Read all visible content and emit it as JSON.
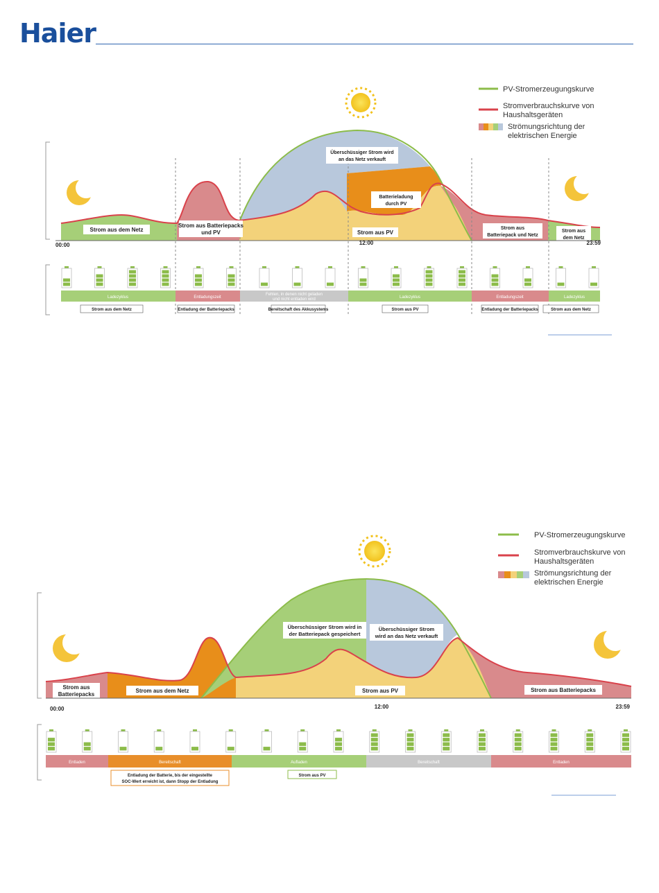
{
  "header": {
    "logo": "Haier"
  },
  "diagram1": {
    "legend": {
      "pv": "PV-Stromerzeugungskurve",
      "consumption_line1": "Stromverbrauchskurve von",
      "consumption_line2": "Haushaltsgeräten",
      "flow_line1": "Strömungsrichtung der",
      "flow_line2": "elektrischen Energie"
    },
    "regions": {
      "grid": "Strom aus dem Netz",
      "battery_pv_1": "Strom aus Batteriepacks",
      "battery_pv_2": "und PV",
      "surplus_1": "Überschüssiger Strom wird",
      "surplus_2": "an das Netz verkauft",
      "charge_1": "Batterieladung",
      "charge_2": "durch PV",
      "pv": "Strom aus PV",
      "battery_grid_1": "Strom aus",
      "battery_grid_2": "Batteriepack und Netz",
      "grid_end_1": "Strom aus",
      "grid_end_2": "dem Netz"
    },
    "axis": {
      "start": "00:00",
      "mid": "12:00",
      "end": "23:59"
    },
    "bars": [
      {
        "label": "Ladezyklus",
        "color": "#a6cf78"
      },
      {
        "label": "Entladungszeit",
        "color": "#d98a8c"
      },
      {
        "label_1": "Fehlen, in denen nicht geladen",
        "label_2": "und nicht entladen wird",
        "color": "#c8c8c8"
      },
      {
        "label": "Ladezyklus",
        "color": "#a6cf78"
      },
      {
        "label": "Entladungszeit",
        "color": "#d98a8c"
      },
      {
        "label": "Ladezyklus",
        "color": "#a6cf78"
      }
    ],
    "notes": [
      "Strom aus dem Netz",
      "Entladung der Batteriepacks",
      "Bereitschaft des Akkusystems",
      "Strom aus PV",
      "Entladung der Batteriepacks",
      "Strom aus dem Netz"
    ],
    "battery_levels": [
      2,
      3,
      4,
      4,
      3,
      3,
      1,
      1,
      1,
      2,
      3,
      4,
      4,
      3,
      2,
      1,
      1
    ]
  },
  "diagram2": {
    "legend": {
      "pv": "PV-Stromerzeugungskurve",
      "consumption_line1": "Stromverbrauchskurve von",
      "consumption_line2": "Haushaltsgeräten",
      "flow_line1": "Strömungsrichtung der",
      "flow_line2": "elektrischen Energie"
    },
    "regions": {
      "battery_1": "Strom aus",
      "battery_2": "Batteriepacks",
      "grid": "Strom aus dem Netz",
      "stored_1": "Überschüssiger Strom wird in",
      "stored_2": "der Batteriepack gespeichert",
      "sold_1": "Überschüssiger Strom",
      "sold_2": "wird an das Netz verkauft",
      "pv": "Strom aus PV",
      "battery_end": "Strom aus Batteriepacks"
    },
    "axis": {
      "start": "00:00",
      "mid": "12:00",
      "end": "23:59"
    },
    "bars": [
      {
        "label": "Entladen",
        "color": "#d98a8c"
      },
      {
        "label": "Bereitschaft",
        "color": "#e88e2a"
      },
      {
        "label": "Aufladen",
        "color": "#a6cf78"
      },
      {
        "label": "Bereitschaft",
        "color": "#c8c8c8"
      },
      {
        "label": "Entladen",
        "color": "#d98a8c"
      }
    ],
    "notes": {
      "discharge_1": "Entladung der Batterie, bis der eingestellte",
      "discharge_2": "SOC-Wert erreicht ist, dann Stopp der Entladung",
      "pv": "Strom aus PV"
    },
    "battery_levels": [
      3,
      2,
      1,
      1,
      1,
      1,
      1,
      2,
      3,
      4,
      4,
      4,
      4,
      4,
      4,
      4,
      4
    ]
  },
  "colors": {
    "pv_line": "#8cbc4a",
    "consumption_line": "#d9424b",
    "grid_green": "#a6cf78",
    "battery_red": "#d98a8c",
    "pv_yellow": "#f3d27a",
    "surplus_blue": "#b8c8dc",
    "charge_orange": "#e88e1a",
    "brand_blue": "#1a4f9c"
  }
}
